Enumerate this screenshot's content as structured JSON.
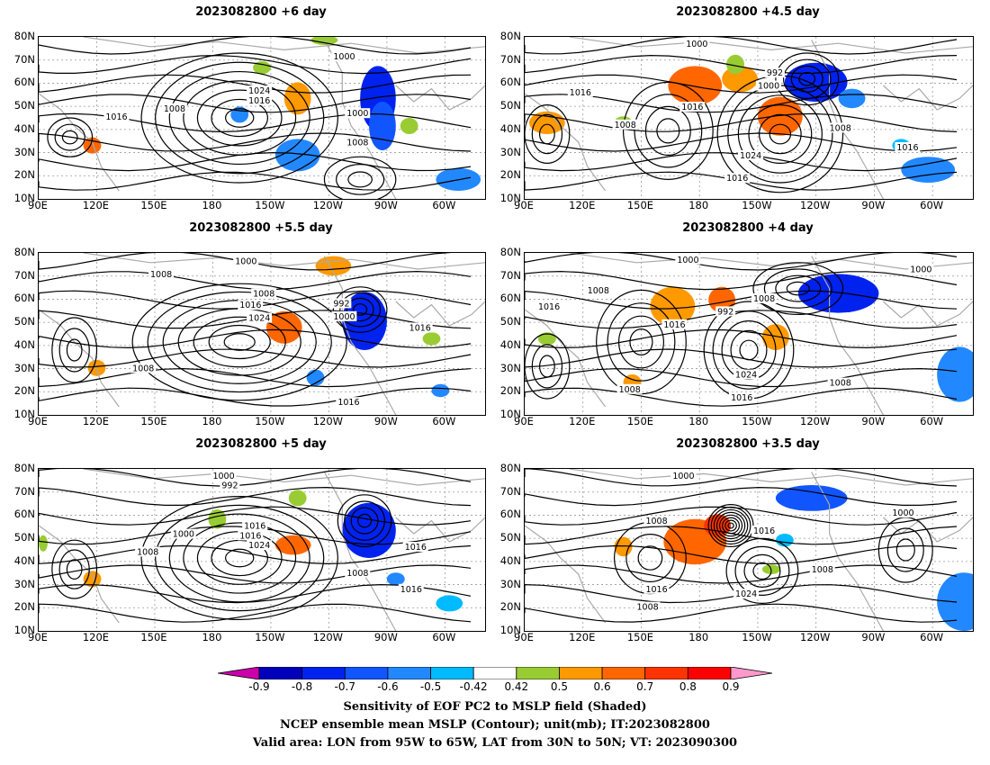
{
  "panels": [
    {
      "title": "2023082800 +6 day"
    },
    {
      "title": "2023082800 +4.5 day"
    },
    {
      "title": "2023082800 +5.5 day"
    },
    {
      "title": "2023082800 +4 day"
    },
    {
      "title": "2023082800 +5 day"
    },
    {
      "title": "2023082800 +3.5 day"
    }
  ],
  "lat_labels": [
    "80N",
    "70N",
    "60N",
    "50N",
    "40N",
    "30N",
    "20N",
    "10N"
  ],
  "lon_labels": [
    "90E",
    "120E",
    "150E",
    "180",
    "150W",
    "120W",
    "90W",
    "60W"
  ],
  "contour_labels": {
    "p0": [
      "1000",
      "1016",
      "1024",
      "1008",
      "1016",
      "1000",
      "1008"
    ],
    "p1": [
      "1000",
      "992",
      "1000",
      "1016",
      "1016",
      "1008",
      "1024",
      "1016",
      "1008",
      "1016"
    ],
    "p2": [
      "1000",
      "1008",
      "1008",
      "1016",
      "1024",
      "992",
      "1000",
      "1016",
      "1008",
      "1016"
    ],
    "p3": [
      "1000",
      "1008",
      "1016",
      "1008",
      "992",
      "1016",
      "1000",
      "1024",
      "1016",
      "1008",
      "1008"
    ],
    "p4": [
      "1000",
      "992",
      "1016",
      "1000",
      "1016",
      "1024",
      "1008",
      "1016",
      "1008",
      "1016"
    ],
    "p5": [
      "1000",
      "1008",
      "1016",
      "1000",
      "1008",
      "1016",
      "1024",
      "1008"
    ]
  },
  "colorbar": {
    "labels": [
      "-0.9",
      "-0.8",
      "-0.7",
      "-0.6",
      "-0.5",
      "-0.42",
      "0.42",
      "0.5",
      "0.6",
      "0.7",
      "0.8",
      "0.9"
    ],
    "colors": [
      "#0000bb",
      "#0022ee",
      "#1155ff",
      "#2288ff",
      "#00bbff",
      "#ffffff",
      "#99cc33",
      "#ff9900",
      "#ff6600",
      "#ff3300",
      "#ff0000"
    ],
    "low_end": "#cc00aa",
    "high_end": "#ff99cc"
  },
  "caption": {
    "line1": "Sensitivity of EOF PC2 to MSLP field (Shaded)",
    "line2": "NCEP ensemble mean MSLP (Contour); unit(mb); IT:2023082800",
    "line3": "Valid area: LON from 95W to 65W, LAT from 30N to 50N; VT: 2023090300"
  }
}
